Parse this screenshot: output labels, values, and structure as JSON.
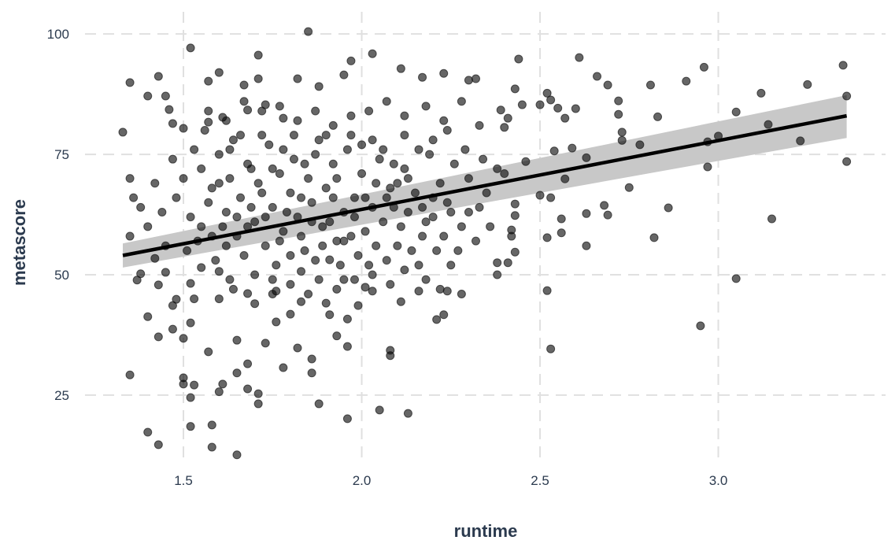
{
  "chart_data": {
    "type": "scatter",
    "title": "",
    "xlabel": "runtime",
    "ylabel": "metascore",
    "xlim": [
      1.224,
      3.469
    ],
    "ylim": [
      10.6,
      104.6
    ],
    "x_ticks": [
      "1.5",
      "2.0",
      "2.5",
      "3.0"
    ],
    "y_ticks": [
      "25",
      "50",
      "75",
      "100"
    ],
    "x_tick_values": [
      1.5,
      2.0,
      2.5,
      3.0
    ],
    "y_tick_values": [
      25,
      50,
      75,
      100
    ],
    "grid": "major, dashed, light gray",
    "legend": "none",
    "point_color": "#000000",
    "point_opacity": 0.6,
    "band_color": "#c8c8c8",
    "line_color": "#000000",
    "regression": {
      "method": "linear with confidence band",
      "x": [
        1.33,
        3.36
      ],
      "y": [
        54.0,
        83.0
      ],
      "band_lower": [
        51.5,
        78.4
      ],
      "band_upper": [
        56.5,
        87.3
      ]
    },
    "points": [
      [
        1.33,
        79.6
      ],
      [
        1.35,
        89.9
      ],
      [
        1.35,
        58.0
      ],
      [
        1.35,
        29.2
      ],
      [
        1.4,
        17.3
      ],
      [
        1.43,
        14.7
      ],
      [
        1.4,
        87.1
      ],
      [
        1.43,
        91.2
      ],
      [
        1.52,
        97.1
      ],
      [
        1.85,
        100.5
      ],
      [
        1.65,
        12.6
      ],
      [
        1.96,
        20.1
      ],
      [
        2.05,
        21.9
      ],
      [
        2.13,
        21.2
      ],
      [
        1.88,
        23.2
      ],
      [
        2.44,
        94.8
      ],
      [
        2.61,
        95.1
      ],
      [
        2.96,
        93.1
      ],
      [
        2.91,
        90.2
      ],
      [
        3.35,
        93.5
      ],
      [
        3.36,
        87.1
      ],
      [
        3.36,
        73.5
      ],
      [
        3.25,
        89.5
      ],
      [
        3.12,
        87.7
      ],
      [
        3.14,
        81.2
      ],
      [
        3.05,
        83.8
      ],
      [
        3.0,
        78.8
      ],
      [
        2.97,
        72.4
      ],
      [
        2.97,
        77.6
      ],
      [
        3.23,
        77.8
      ],
      [
        3.15,
        61.6
      ],
      [
        3.05,
        49.2
      ],
      [
        2.95,
        39.4
      ],
      [
        2.52,
        46.7
      ],
      [
        2.53,
        34.6
      ],
      [
        2.82,
        57.7
      ],
      [
        2.86,
        63.9
      ],
      [
        2.83,
        82.8
      ],
      [
        2.81,
        89.4
      ],
      [
        2.78,
        77.0
      ],
      [
        2.75,
        68.1
      ],
      [
        2.69,
        62.4
      ],
      [
        2.68,
        64.4
      ],
      [
        2.63,
        56.0
      ],
      [
        2.63,
        62.7
      ],
      [
        2.56,
        61.6
      ],
      [
        2.56,
        58.7
      ],
      [
        2.53,
        66.0
      ],
      [
        2.5,
        66.5
      ],
      [
        2.52,
        57.7
      ],
      [
        2.63,
        74.3
      ],
      [
        2.66,
        91.2
      ],
      [
        2.69,
        89.4
      ],
      [
        2.72,
        86.1
      ],
      [
        2.72,
        83.3
      ],
      [
        2.73,
        79.6
      ],
      [
        2.73,
        77.9
      ],
      [
        2.54,
        75.7
      ],
      [
        2.59,
        76.3
      ],
      [
        2.57,
        69.9
      ],
      [
        2.52,
        87.7
      ],
      [
        2.53,
        86.3
      ],
      [
        2.55,
        84.6
      ],
      [
        2.57,
        82.5
      ],
      [
        2.5,
        85.3
      ],
      [
        2.6,
        84.5
      ],
      [
        2.46,
        73.5
      ],
      [
        2.43,
        64.7
      ],
      [
        2.43,
        62.3
      ],
      [
        2.42,
        59.3
      ],
      [
        2.38,
        52.5
      ],
      [
        2.41,
        52.5
      ],
      [
        2.38,
        50.0
      ],
      [
        2.43,
        54.7
      ],
      [
        2.24,
        46.6
      ],
      [
        2.23,
        41.7
      ],
      [
        2.21,
        40.7
      ],
      [
        2.11,
        44.4
      ],
      [
        2.08,
        33.2
      ],
      [
        2.08,
        34.3
      ],
      [
        2.16,
        46.6
      ],
      [
        2.43,
        88.6
      ],
      [
        2.45,
        85.3
      ],
      [
        2.39,
        84.2
      ],
      [
        2.41,
        82.5
      ],
      [
        2.4,
        80.6
      ],
      [
        2.32,
        90.7
      ],
      [
        2.3,
        90.4
      ],
      [
        2.23,
        91.8
      ],
      [
        2.17,
        91.0
      ],
      [
        2.11,
        92.8
      ],
      [
        2.03,
        95.9
      ],
      [
        1.97,
        94.4
      ],
      [
        1.95,
        91.5
      ],
      [
        1.88,
        89.1
      ],
      [
        1.82,
        90.7
      ],
      [
        1.71,
        95.6
      ],
      [
        1.6,
        92.0
      ],
      [
        1.57,
        90.2
      ],
      [
        1.67,
        89.4
      ],
      [
        1.71,
        90.7
      ],
      [
        1.68,
        84.2
      ],
      [
        1.73,
        85.3
      ],
      [
        1.78,
        82.5
      ],
      [
        1.61,
        82.7
      ],
      [
        1.46,
        84.3
      ],
      [
        1.45,
        87.1
      ],
      [
        1.47,
        81.4
      ],
      [
        1.5,
        80.4
      ],
      [
        1.57,
        81.7
      ],
      [
        1.4,
        41.3
      ],
      [
        1.43,
        47.9
      ],
      [
        1.43,
        37.1
      ],
      [
        1.47,
        38.7
      ],
      [
        1.47,
        43.6
      ],
      [
        1.5,
        36.8
      ],
      [
        1.5,
        28.6
      ],
      [
        1.5,
        27.3
      ],
      [
        1.52,
        18.5
      ],
      [
        1.52,
        24.5
      ],
      [
        1.53,
        27.1
      ],
      [
        1.52,
        40.0
      ],
      [
        1.57,
        34.0
      ],
      [
        1.58,
        18.8
      ],
      [
        1.58,
        14.2
      ],
      [
        1.6,
        25.7
      ],
      [
        1.61,
        27.3
      ],
      [
        1.65,
        36.4
      ],
      [
        1.65,
        29.6
      ],
      [
        1.68,
        26.3
      ],
      [
        1.68,
        31.5
      ],
      [
        1.71,
        23.2
      ],
      [
        1.71,
        25.3
      ],
      [
        1.73,
        35.8
      ],
      [
        1.76,
        40.2
      ],
      [
        1.78,
        30.7
      ],
      [
        1.8,
        41.8
      ],
      [
        1.82,
        34.8
      ],
      [
        1.83,
        44.4
      ],
      [
        1.86,
        29.6
      ],
      [
        1.86,
        32.5
      ],
      [
        1.9,
        44.1
      ],
      [
        1.91,
        41.7
      ],
      [
        1.93,
        37.3
      ],
      [
        1.96,
        40.8
      ],
      [
        1.99,
        43.6
      ],
      [
        2.01,
        47.4
      ],
      [
        1.96,
        35.1
      ],
      [
        2.03,
        46.6
      ],
      [
        1.37,
        48.9
      ],
      [
        1.38,
        50.2
      ],
      [
        1.42,
        53.4
      ],
      [
        1.45,
        50.5
      ],
      [
        1.48,
        44.9
      ],
      [
        1.52,
        48.2
      ],
      [
        1.55,
        51.5
      ],
      [
        1.6,
        50.7
      ],
      [
        1.63,
        49.0
      ],
      [
        1.68,
        46.1
      ],
      [
        1.75,
        49.0
      ],
      [
        1.76,
        46.6
      ],
      [
        1.83,
        50.7
      ],
      [
        1.91,
        53.1
      ],
      [
        1.95,
        49.0
      ],
      [
        1.55,
        72
      ],
      [
        1.58,
        68
      ],
      [
        1.6,
        75
      ],
      [
        1.62,
        63
      ],
      [
        1.63,
        70
      ],
      [
        1.65,
        58
      ],
      [
        1.66,
        66
      ],
      [
        1.68,
        73
      ],
      [
        1.7,
        61
      ],
      [
        1.71,
        69
      ],
      [
        1.73,
        56
      ],
      [
        1.74,
        77
      ],
      [
        1.75,
        64
      ],
      [
        1.77,
        71
      ],
      [
        1.78,
        59
      ],
      [
        1.8,
        67
      ],
      [
        1.81,
        74
      ],
      [
        1.82,
        62
      ],
      [
        1.84,
        55
      ],
      [
        1.85,
        70
      ],
      [
        1.86,
        65
      ],
      [
        1.88,
        78
      ],
      [
        1.89,
        60
      ],
      [
        1.9,
        68
      ],
      [
        1.92,
        73
      ],
      [
        1.93,
        57
      ],
      [
        1.95,
        63
      ],
      [
        1.96,
        76
      ],
      [
        1.98,
        66
      ],
      [
        2.0,
        71
      ],
      [
        2.01,
        59
      ],
      [
        2.03,
        64
      ],
      [
        2.05,
        74
      ],
      [
        2.06,
        61
      ],
      [
        2.08,
        68
      ],
      [
        2.1,
        56
      ],
      [
        2.12,
        72
      ],
      [
        2.13,
        63
      ],
      [
        2.15,
        67
      ],
      [
        2.17,
        58
      ],
      [
        2.19,
        75
      ],
      [
        2.2,
        62
      ],
      [
        2.22,
        69
      ],
      [
        2.24,
        65
      ],
      [
        2.26,
        73
      ],
      [
        2.28,
        60
      ],
      [
        2.3,
        70
      ],
      [
        2.33,
        64
      ],
      [
        2.35,
        67
      ],
      [
        2.38,
        72
      ],
      [
        1.52,
        62
      ],
      [
        1.54,
        57
      ],
      [
        1.57,
        65
      ],
      [
        1.59,
        53
      ],
      [
        1.61,
        60
      ],
      [
        1.64,
        78
      ],
      [
        1.67,
        54
      ],
      [
        1.69,
        64
      ],
      [
        1.72,
        67
      ],
      [
        1.76,
        52
      ],
      [
        1.79,
        63
      ],
      [
        1.83,
        58
      ],
      [
        1.87,
        53
      ],
      [
        1.91,
        61
      ],
      [
        1.94,
        52
      ],
      [
        1.97,
        58
      ],
      [
        1.99,
        54
      ],
      [
        2.02,
        52
      ],
      [
        2.04,
        56
      ],
      [
        2.07,
        53
      ],
      [
        2.09,
        64
      ],
      [
        2.11,
        60
      ],
      [
        2.14,
        55
      ],
      [
        2.16,
        52
      ],
      [
        2.18,
        61
      ],
      [
        2.21,
        55
      ],
      [
        2.23,
        58
      ],
      [
        2.25,
        52
      ],
      [
        2.27,
        55
      ],
      [
        2.32,
        57
      ],
      [
        1.5,
        70
      ],
      [
        1.53,
        76
      ],
      [
        1.56,
        80
      ],
      [
        1.6,
        69
      ],
      [
        1.63,
        76
      ],
      [
        1.66,
        79
      ],
      [
        1.69,
        72
      ],
      [
        1.72,
        79
      ],
      [
        1.75,
        72
      ],
      [
        1.78,
        76
      ],
      [
        1.81,
        79
      ],
      [
        1.84,
        73
      ],
      [
        1.87,
        75
      ],
      [
        1.9,
        79
      ],
      [
        1.93,
        70
      ],
      [
        1.97,
        79
      ],
      [
        2.0,
        77
      ],
      [
        2.03,
        78
      ],
      [
        2.06,
        76
      ],
      [
        2.09,
        73
      ],
      [
        2.12,
        79
      ],
      [
        2.16,
        76
      ],
      [
        2.2,
        78
      ],
      [
        2.24,
        80
      ],
      [
        2.29,
        76
      ],
      [
        2.34,
        74
      ],
      [
        2.4,
        71
      ],
      [
        1.51,
        55
      ],
      [
        1.55,
        60
      ],
      [
        1.58,
        58
      ],
      [
        1.62,
        56
      ],
      [
        1.65,
        62
      ],
      [
        1.68,
        60
      ],
      [
        1.7,
        50
      ],
      [
        1.73,
        62
      ],
      [
        1.77,
        57
      ],
      [
        1.8,
        54
      ],
      [
        1.83,
        66
      ],
      [
        1.86,
        61
      ],
      [
        1.89,
        56
      ],
      [
        1.92,
        66
      ],
      [
        1.95,
        57
      ],
      [
        1.98,
        62
      ],
      [
        2.01,
        66
      ],
      [
        2.04,
        69
      ],
      [
        2.07,
        66
      ],
      [
        2.1,
        69
      ],
      [
        2.13,
        70
      ],
      [
        2.17,
        64
      ],
      [
        2.2,
        66
      ],
      [
        2.25,
        63
      ],
      [
        2.3,
        63
      ],
      [
        2.36,
        60
      ],
      [
        2.42,
        58
      ],
      [
        1.57,
        84
      ],
      [
        1.62,
        82
      ],
      [
        1.67,
        86
      ],
      [
        1.72,
        84
      ],
      [
        1.77,
        85
      ],
      [
        1.82,
        82
      ],
      [
        1.87,
        84
      ],
      [
        1.92,
        81
      ],
      [
        1.97,
        83
      ],
      [
        2.02,
        84
      ],
      [
        2.07,
        86
      ],
      [
        2.12,
        83
      ],
      [
        2.18,
        85
      ],
      [
        2.23,
        82
      ],
      [
        2.28,
        86
      ],
      [
        2.33,
        81
      ],
      [
        1.6,
        45
      ],
      [
        1.64,
        47
      ],
      [
        1.7,
        44
      ],
      [
        1.75,
        46
      ],
      [
        1.8,
        48
      ],
      [
        1.85,
        46
      ],
      [
        1.88,
        49
      ],
      [
        1.93,
        47
      ],
      [
        1.98,
        49
      ],
      [
        2.03,
        50
      ],
      [
        2.08,
        48
      ],
      [
        2.12,
        51
      ],
      [
        2.18,
        49
      ],
      [
        2.22,
        47
      ],
      [
        2.28,
        46
      ],
      [
        1.53,
        45
      ],
      [
        1.45,
        56
      ],
      [
        1.44,
        63
      ],
      [
        1.48,
        66
      ],
      [
        1.4,
        60
      ],
      [
        1.42,
        69
      ],
      [
        1.47,
        74
      ],
      [
        1.35,
        70
      ],
      [
        1.36,
        66
      ],
      [
        1.38,
        64
      ]
    ]
  }
}
